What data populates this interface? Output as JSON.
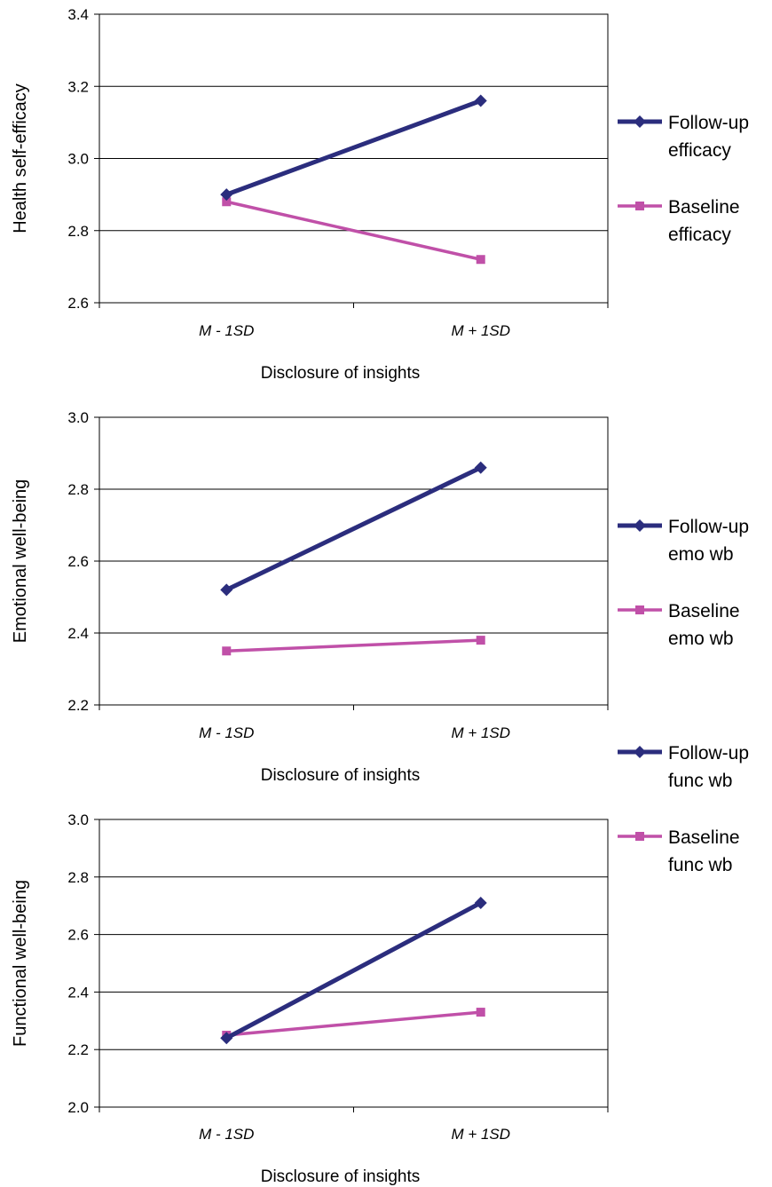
{
  "chart_data": [
    {
      "type": "line",
      "categories": [
        "M - 1SD",
        "M + 1SD"
      ],
      "xlabel": "Disclosure of insights",
      "ylabel": "Health self-efficacy",
      "ylim": [
        2.6,
        3.4
      ],
      "yticks": [
        "2.6",
        "2.8",
        "3.0",
        "3.2",
        "3.4"
      ],
      "grid": "horizontal",
      "legend_position": "right",
      "series": [
        {
          "name_line1": "Follow-up",
          "name_line2": "efficacy",
          "marker": "diamond",
          "color": "#2b2d7d",
          "values": [
            2.9,
            3.16
          ]
        },
        {
          "name_line1": "Baseline",
          "name_line2": "efficacy",
          "marker": "square",
          "color": "#c050a8",
          "values": [
            2.88,
            2.72
          ]
        }
      ]
    },
    {
      "type": "line",
      "categories": [
        "M - 1SD",
        "M + 1SD"
      ],
      "xlabel": "Disclosure of insights",
      "ylabel": "Emotional well-being",
      "ylim": [
        2.2,
        3.0
      ],
      "yticks": [
        "2.2",
        "2.4",
        "2.6",
        "2.8",
        "3.0"
      ],
      "grid": "horizontal",
      "legend_position": "right",
      "series": [
        {
          "name_line1": "Follow-up",
          "name_line2": "emo wb",
          "marker": "diamond",
          "color": "#2b2d7d",
          "values": [
            2.52,
            2.86
          ]
        },
        {
          "name_line1": "Baseline",
          "name_line2": "emo wb",
          "marker": "square",
          "color": "#c050a8",
          "values": [
            2.35,
            2.38
          ]
        }
      ]
    },
    {
      "type": "line",
      "categories": [
        "M - 1SD",
        "M + 1SD"
      ],
      "xlabel": "Disclosure of insights",
      "ylabel": "Functional well-being",
      "ylim": [
        2.0,
        3.0
      ],
      "yticks": [
        "2.0",
        "2.2",
        "2.4",
        "2.6",
        "2.8",
        "3.0"
      ],
      "grid": "horizontal",
      "legend_position": "right",
      "series": [
        {
          "name_line1": "Follow-up",
          "name_line2": "func wb",
          "marker": "diamond",
          "color": "#2b2d7d",
          "values": [
            2.24,
            2.71
          ]
        },
        {
          "name_line1": "Baseline",
          "name_line2": "func wb",
          "marker": "square",
          "color": "#c050a8",
          "values": [
            2.25,
            2.33
          ]
        }
      ]
    }
  ]
}
